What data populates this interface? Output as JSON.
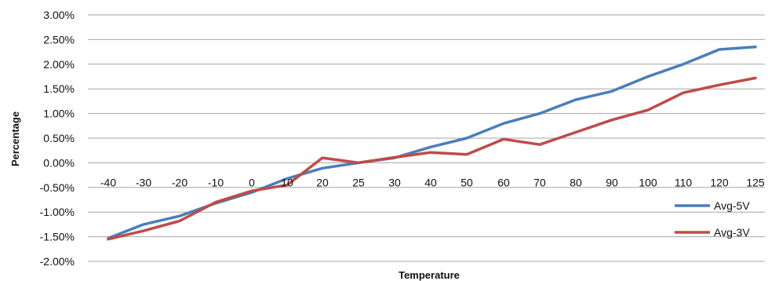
{
  "chart_data": {
    "type": "line",
    "title": "",
    "xlabel": "Temperature",
    "ylabel": "Percentage",
    "categories": [
      "-40",
      "-30",
      "-20",
      "-10",
      "0",
      "10",
      "20",
      "25",
      "30",
      "40",
      "50",
      "60",
      "70",
      "80",
      "90",
      "100",
      "110",
      "120",
      "125"
    ],
    "ylim": [
      -2.0,
      3.0
    ],
    "yticks": [
      3.0,
      2.5,
      2.0,
      1.5,
      1.0,
      0.5,
      0.0,
      -0.5,
      -1.0,
      -1.5,
      -2.0
    ],
    "ytick_labels": [
      "3.00%",
      "2.50%",
      "2.00%",
      "1.50%",
      "1.00%",
      "0.50%",
      "0.00%",
      "-0.50%",
      "-1.00%",
      "-1.50%",
      "-2.00%"
    ],
    "grid": true,
    "legend_position": "right",
    "series": [
      {
        "name": "Avg-5V",
        "color": "#4a7ebb",
        "values": [
          -1.53,
          -1.25,
          -1.08,
          -0.82,
          -0.6,
          -0.32,
          -0.11,
          0.0,
          0.1,
          0.32,
          0.5,
          0.8,
          1.0,
          1.28,
          1.45,
          1.75,
          2.0,
          2.3,
          2.35
        ]
      },
      {
        "name": "Avg-3V",
        "color": "#be4b48",
        "values": [
          -1.55,
          -1.38,
          -1.18,
          -0.8,
          -0.57,
          -0.45,
          0.1,
          0.0,
          0.11,
          0.21,
          0.17,
          0.48,
          0.37,
          0.62,
          0.87,
          1.07,
          1.42,
          1.58,
          1.72
        ]
      }
    ]
  }
}
